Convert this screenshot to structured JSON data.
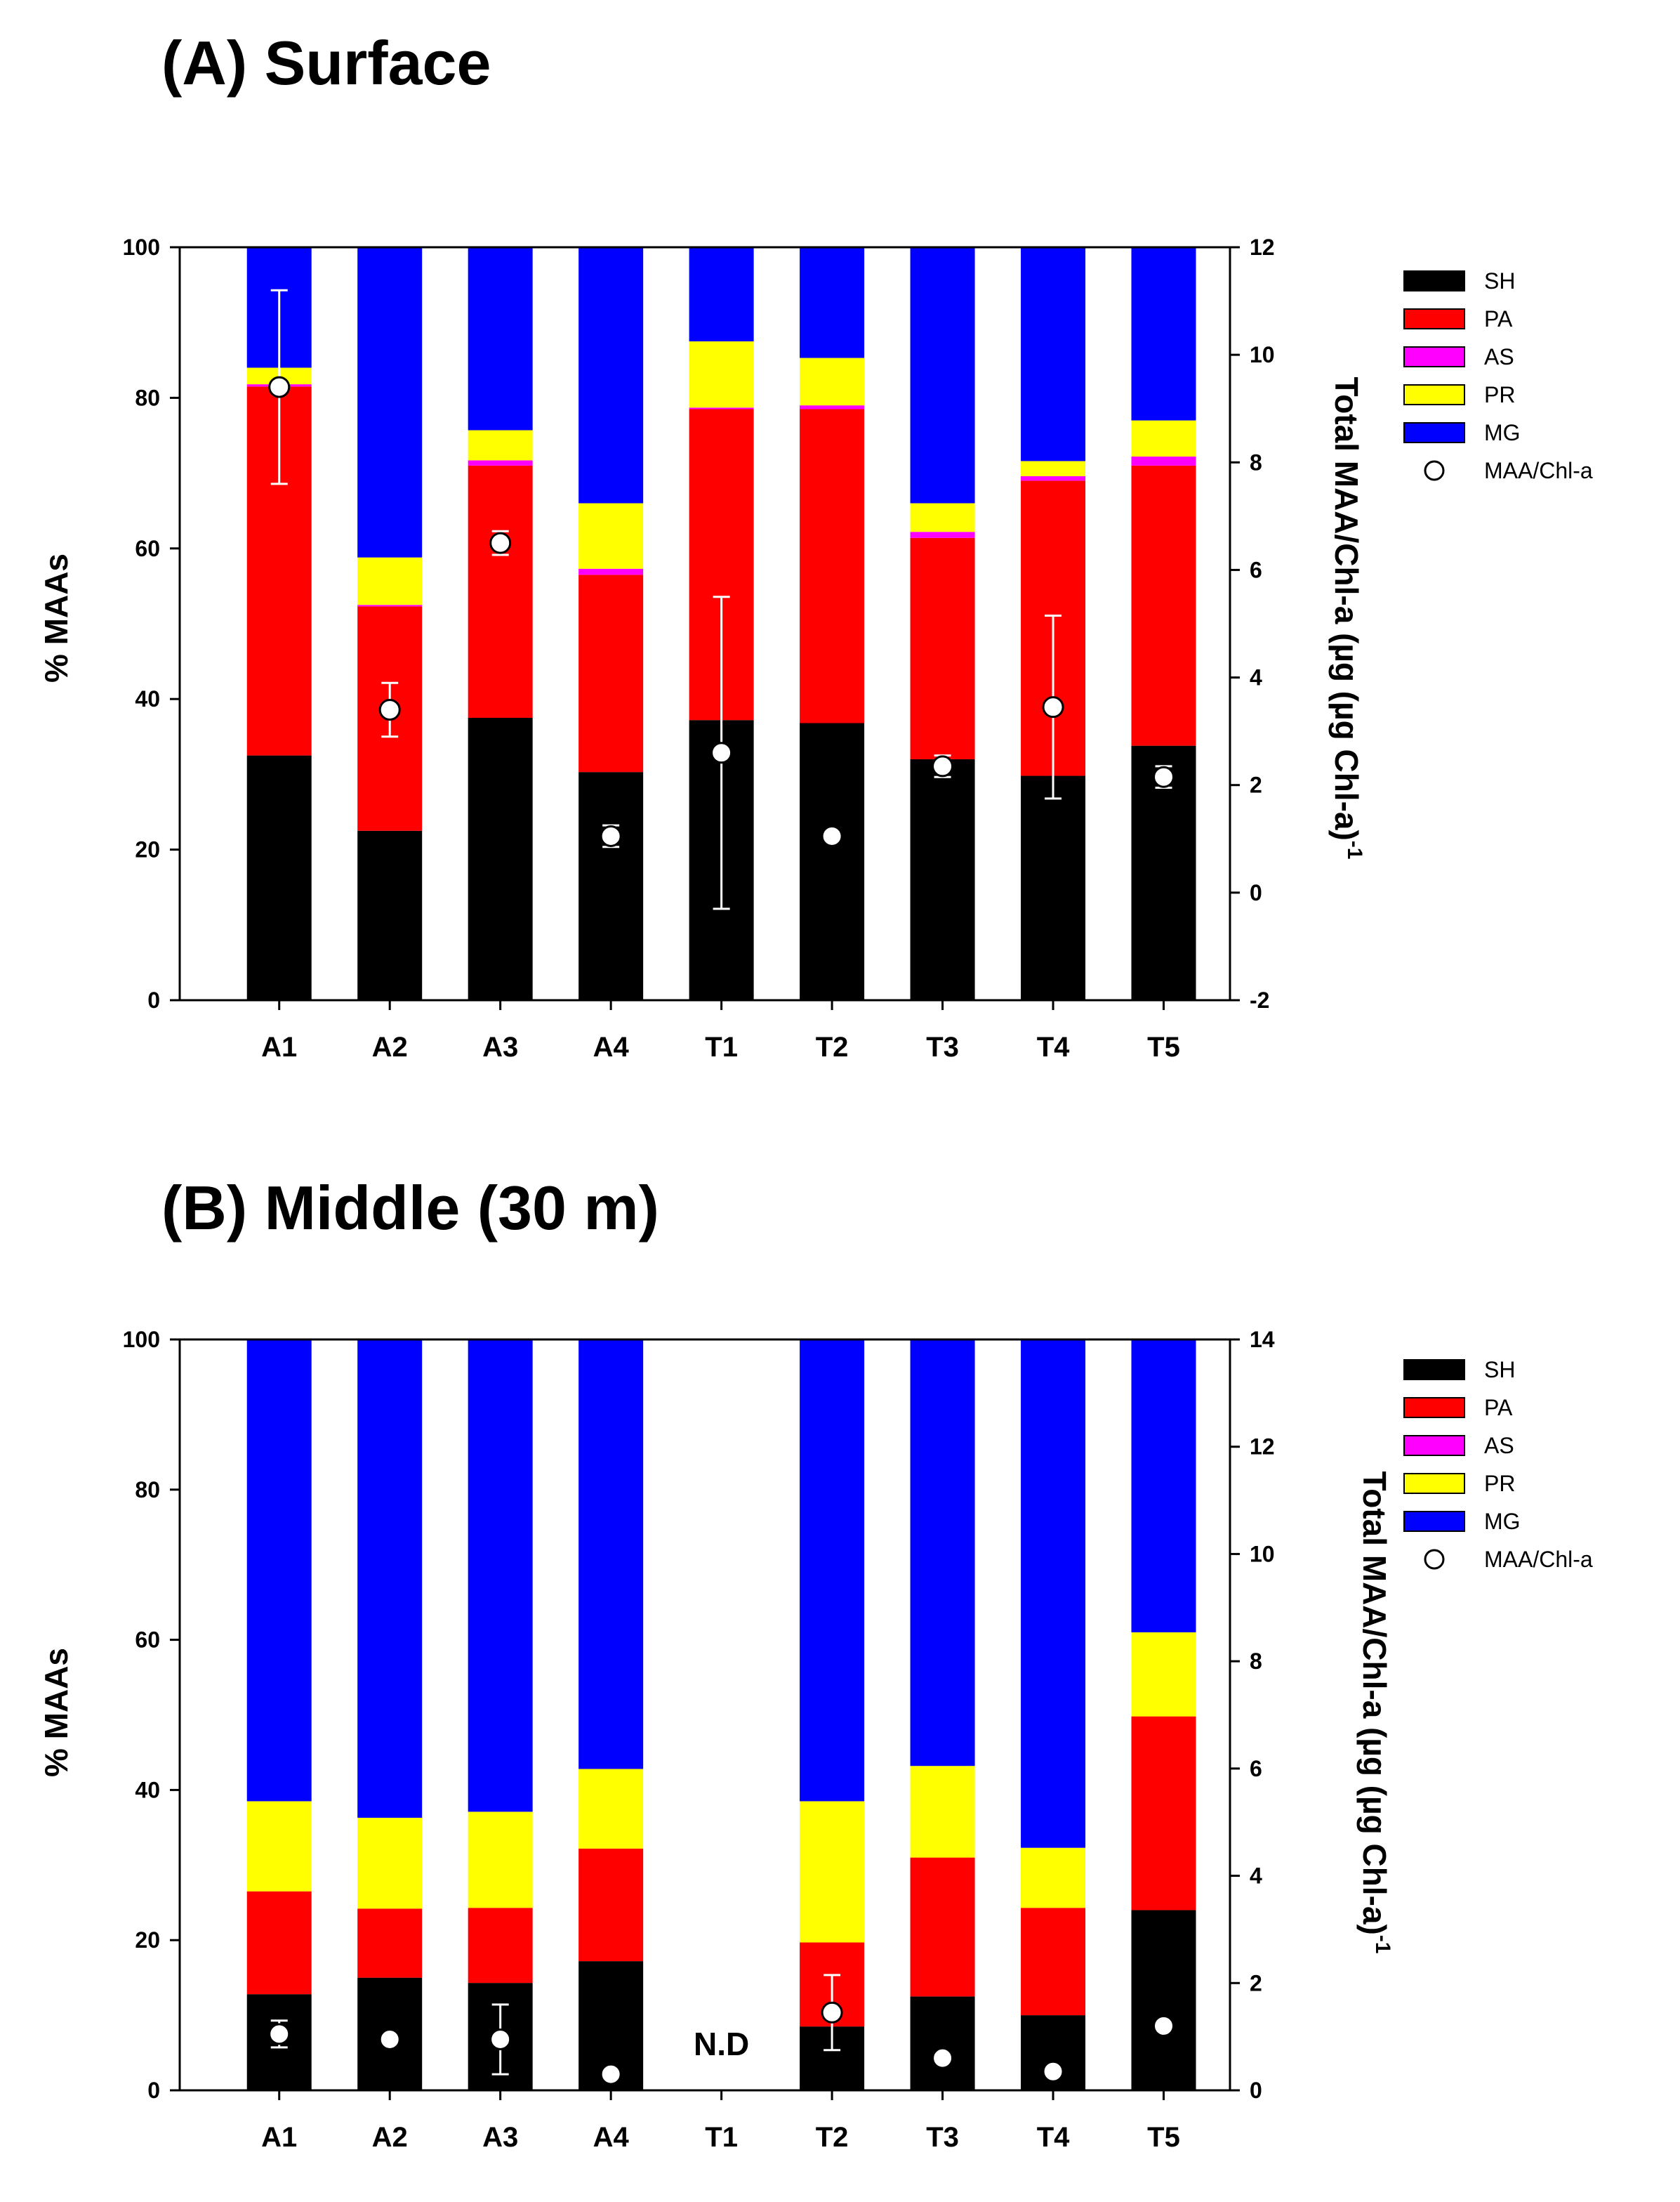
{
  "chart_data": [
    {
      "type": "bar",
      "stacked": true,
      "title": "(A) Surface",
      "categories": [
        "A1",
        "A2",
        "A3",
        "A4",
        "T1",
        "T2",
        "T3",
        "T4",
        "T5"
      ],
      "series": [
        {
          "name": "SH",
          "color": "#000000",
          "values": [
            32.5,
            22.5,
            37.5,
            30.3,
            37.2,
            36.8,
            32.0,
            29.8,
            33.8
          ]
        },
        {
          "name": "PA",
          "color": "#ff0000",
          "values": [
            49.0,
            29.8,
            33.5,
            26.2,
            41.3,
            41.7,
            29.4,
            39.2,
            37.2
          ]
        },
        {
          "name": "AS",
          "color": "#ff00ff",
          "values": [
            0.3,
            0.2,
            0.7,
            0.8,
            0.2,
            0.5,
            0.8,
            0.6,
            1.2
          ]
        },
        {
          "name": "PR",
          "color": "#ffff00",
          "values": [
            2.2,
            6.3,
            4.0,
            8.7,
            8.8,
            6.3,
            3.8,
            2.0,
            4.8
          ]
        },
        {
          "name": "MG",
          "color": "#0000ff",
          "values": [
            16.0,
            41.2,
            24.3,
            34.0,
            12.5,
            14.7,
            34.0,
            28.4,
            23.0
          ]
        }
      ],
      "marker_series": {
        "name": "MAA/Chl-a",
        "values": [
          9.4,
          3.4,
          6.5,
          1.05,
          2.6,
          1.05,
          2.35,
          3.45,
          2.15
        ],
        "errors": [
          1.8,
          0.5,
          0.22,
          0.2,
          2.9,
          0.1,
          0.2,
          1.7,
          0.2
        ]
      },
      "ylabel": "% MAAs",
      "ylabel_right": "Total MAA/Chl-a (µg (µg Chl-a)",
      "ylabel_right_sup": "-1",
      "ylim": [
        0,
        100
      ],
      "y_ticks": [
        0,
        20,
        40,
        60,
        80,
        100
      ],
      "ylim_right": [
        -2,
        12
      ],
      "y_ticks_right": [
        -2,
        0,
        2,
        4,
        6,
        8,
        10,
        12
      ],
      "legend": [
        "SH",
        "PA",
        "AS",
        "PR",
        "MG",
        "MAA/Chl-a"
      ],
      "legend_position": "top-right",
      "annotations": []
    },
    {
      "type": "bar",
      "stacked": true,
      "title": "(B) Middle (30 m)",
      "categories": [
        "A1",
        "A2",
        "A3",
        "A4",
        "T1",
        "T2",
        "T3",
        "T4",
        "T5"
      ],
      "series": [
        {
          "name": "SH",
          "color": "#000000",
          "values": [
            12.8,
            15.0,
            14.3,
            17.2,
            null,
            8.5,
            12.5,
            10.0,
            24.0
          ]
        },
        {
          "name": "PA",
          "color": "#ff0000",
          "values": [
            13.7,
            9.2,
            10.0,
            15.0,
            null,
            11.2,
            18.5,
            14.3,
            25.8
          ]
        },
        {
          "name": "AS",
          "color": "#ff00ff",
          "values": [
            0,
            0,
            0,
            0,
            null,
            0,
            0,
            0,
            0
          ]
        },
        {
          "name": "PR",
          "color": "#ffff00",
          "values": [
            12.0,
            12.1,
            12.8,
            10.6,
            null,
            18.8,
            12.2,
            8.0,
            11.2
          ]
        },
        {
          "name": "MG",
          "color": "#0000ff",
          "values": [
            61.5,
            63.7,
            62.9,
            57.2,
            null,
            61.5,
            56.8,
            67.7,
            39.0
          ]
        }
      ],
      "marker_series": {
        "name": "MAA/Chl-a",
        "values": [
          1.05,
          0.95,
          0.95,
          0.3,
          null,
          1.45,
          0.6,
          0.35,
          1.2
        ],
        "errors": [
          0.25,
          0.1,
          0.65,
          0.1,
          null,
          0.7,
          0.1,
          0.05,
          0.1
        ]
      },
      "ylabel": "% MAAs",
      "ylabel_right": "Total MAA/Chl-a (µg (µg Chl-a)",
      "ylabel_right_sup": "-1",
      "ylim": [
        0,
        100
      ],
      "y_ticks": [
        0,
        20,
        40,
        60,
        80,
        100
      ],
      "ylim_right": [
        0,
        14
      ],
      "y_ticks_right": [
        0,
        2,
        4,
        6,
        8,
        10,
        12,
        14
      ],
      "legend": [
        "SH",
        "PA",
        "AS",
        "PR",
        "MG",
        "MAA/Chl-a"
      ],
      "legend_position": "top-right",
      "annotations": [
        {
          "category": "T1",
          "text": "N.D"
        }
      ]
    }
  ]
}
